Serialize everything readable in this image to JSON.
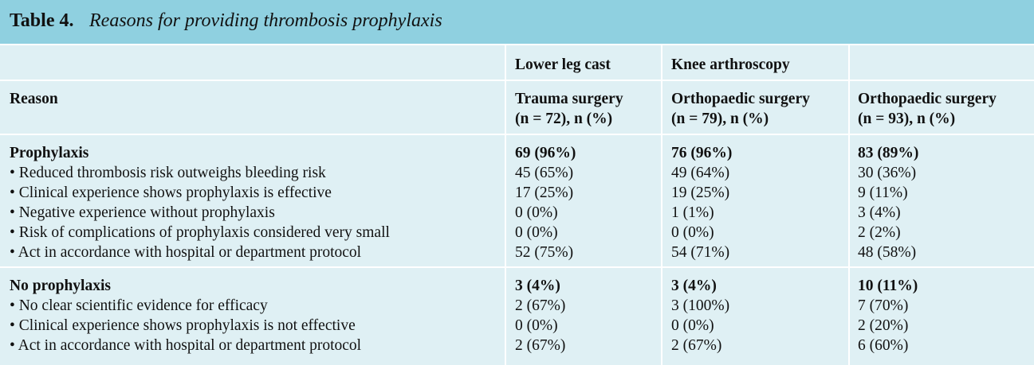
{
  "table": {
    "label": "Table 4.",
    "title": "Reasons for providing thrombosis prophylaxis",
    "group_headers": [
      "Lower leg cast",
      "Knee arthroscopy",
      ""
    ],
    "reason_header": "Reason",
    "columns": [
      {
        "line1": "Trauma surgery",
        "line2": "(n = 72), n (%)"
      },
      {
        "line1": "Orthopaedic surgery",
        "line2": "(n = 79), n (%)"
      },
      {
        "line1": "Orthopaedic surgery",
        "line2": "(n = 93), n (%)"
      }
    ],
    "sections": [
      {
        "heading": "Prophylaxis",
        "totals": [
          "69 (96%)",
          "76 (96%)",
          "83 (89%)"
        ],
        "rows": [
          {
            "reason": "• Reduced thrombosis risk outweighs bleeding risk",
            "values": [
              "45 (65%)",
              "49 (64%)",
              "30 (36%)"
            ]
          },
          {
            "reason": "• Clinical experience shows prophylaxis is effective",
            "values": [
              "17 (25%)",
              "19 (25%)",
              "9 (11%)"
            ]
          },
          {
            "reason": "• Negative experience without prophylaxis",
            "values": [
              "0 (0%)",
              "1 (1%)",
              "3 (4%)"
            ]
          },
          {
            "reason": "• Risk of complications of prophylaxis considered very small",
            "values": [
              "0 (0%)",
              "0 (0%)",
              "2 (2%)"
            ]
          },
          {
            "reason": "• Act in accordance with hospital or department protocol",
            "values": [
              "52 (75%)",
              "54 (71%)",
              "48 (58%)"
            ]
          }
        ]
      },
      {
        "heading": "No prophylaxis",
        "totals": [
          "3 (4%)",
          "3 (4%)",
          "10 (11%)"
        ],
        "rows": [
          {
            "reason": "• No clear scientific evidence for efficacy",
            "values": [
              "2 (67%)",
              "3 (100%)",
              "7 (70%)"
            ]
          },
          {
            "reason": "• Clinical experience shows prophylaxis is not effective",
            "values": [
              "0 (0%)",
              "0 (0%)",
              "2 (20%)"
            ]
          },
          {
            "reason": "• Act in accordance with hospital or department protocol",
            "values": [
              "2 (67%)",
              "2 (67%)",
              "6 (60%)"
            ]
          }
        ]
      }
    ]
  }
}
